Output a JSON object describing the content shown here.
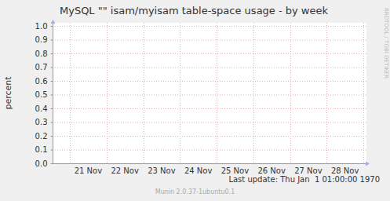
{
  "chart_data": {
    "type": "line",
    "title": "MySQL \"\" isam/myisam table-space usage - by week",
    "ylabel": "percent",
    "categories": [
      "21 Nov",
      "22 Nov",
      "23 Nov",
      "24 Nov",
      "25 Nov",
      "26 Nov",
      "27 Nov",
      "28 Nov"
    ],
    "series": [],
    "ylim": [
      0,
      1
    ],
    "yticks": [
      {
        "value": 0,
        "label": "0.0"
      },
      0.1,
      0.2,
      0.3,
      0.4,
      0.5,
      0.6,
      0.7,
      0.8,
      0.9,
      {
        "value": 1,
        "label": "1.0"
      }
    ],
    "grid": true,
    "annotations": [
      "Last update: Thu Jan  1 01:00:00 1970",
      "RRDTOOL / TOBI OETIKER",
      "Munin 2.0.37-1ubuntu0.1"
    ]
  }
}
